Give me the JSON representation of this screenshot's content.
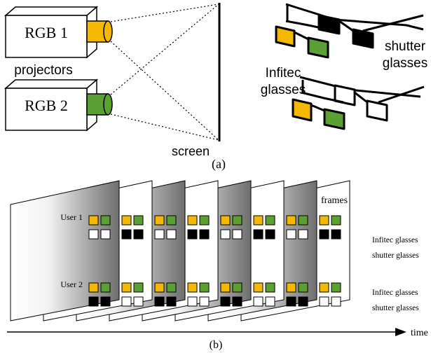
{
  "part_a": {
    "projector_1": "RGB 1",
    "projector_2": "RGB 2",
    "projectors_label": "projectors",
    "screen_label": "screen",
    "caption": "(a)",
    "infitec_label": [
      "Infitec",
      "glasses"
    ],
    "shutter_label": [
      "shutter",
      "glasses"
    ]
  },
  "part_b": {
    "frames_label": "frames",
    "user_1": "User 1",
    "user_2": "User 2",
    "right_labels": [
      "Infitec glasses",
      "shutter glasses",
      "Infitec glasses",
      "shutter glasses"
    ],
    "time_label": "time",
    "caption": "(b)"
  }
}
